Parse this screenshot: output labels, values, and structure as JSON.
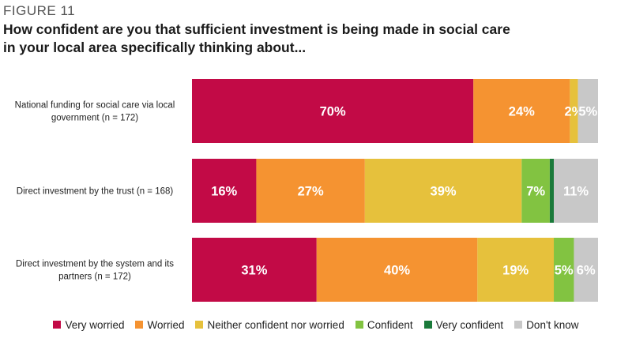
{
  "figure_label": "FIGURE 11",
  "chart_data": {
    "type": "bar",
    "orientation": "horizontal",
    "stacked": true,
    "percent_stacked": true,
    "title": "How confident are you that sufficient investment is being made in social care in your local area specifically thinking about...",
    "categories": [
      [
        "National funding for social care via local",
        "government (n = 172)"
      ],
      [
        "Direct investment by the trust (n = 168)"
      ],
      [
        "Direct investment by the system and its",
        "partners (n = 172)"
      ]
    ],
    "series": [
      {
        "name": "Very worried",
        "color": "#c20a46",
        "values": [
          70,
          16,
          31
        ],
        "labels": [
          "70%",
          "16%",
          "31%"
        ]
      },
      {
        "name": "Worried",
        "color": "#f59331",
        "values": [
          24,
          27,
          40
        ],
        "labels": [
          "24%",
          "27%",
          "40%"
        ]
      },
      {
        "name": "Neither confident nor worried",
        "color": "#e6c13c",
        "values": [
          2,
          39,
          19
        ],
        "labels": [
          "2%",
          "39%",
          "19%"
        ]
      },
      {
        "name": "Confident",
        "color": "#82c341",
        "values": [
          0,
          7,
          5
        ],
        "labels": [
          "",
          "7%",
          "5%"
        ]
      },
      {
        "name": "Very confident",
        "color": "#1a7a3a",
        "values": [
          0,
          1,
          0
        ],
        "labels": [
          "",
          "",
          ""
        ]
      },
      {
        "name": "Don't know",
        "color": "#c8c8c8",
        "values": [
          5,
          11,
          6
        ],
        "labels": [
          "5%",
          "11%",
          "6%"
        ]
      }
    ],
    "xlim": [
      0,
      100
    ],
    "grid": false,
    "legend_position": "bottom"
  }
}
